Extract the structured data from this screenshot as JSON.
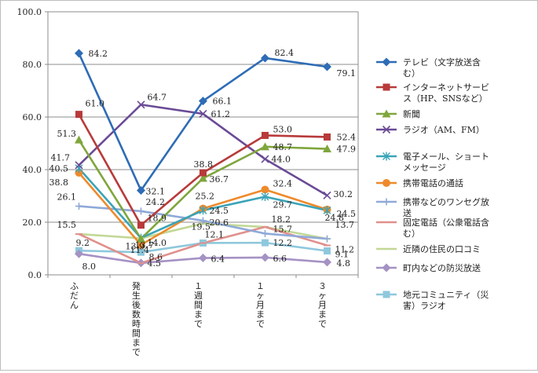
{
  "chart_data": {
    "type": "line",
    "categories": [
      [
        "ふ",
        "だ",
        "ん"
      ],
      [
        "発",
        "生",
        "後",
        "数",
        "時",
        "間",
        "ま",
        "で"
      ],
      [
        "１",
        "週",
        "間",
        "ま",
        "で"
      ],
      [
        "１",
        "ヶ",
        "月",
        "ま",
        "で"
      ],
      [
        "３",
        "ヶ",
        "月",
        "ま",
        "で"
      ]
    ],
    "ylim": [
      0,
      100
    ],
    "yticks": [
      "0.0",
      "20.0",
      "40.0",
      "60.0",
      "80.0",
      "100.0"
    ],
    "grid": true,
    "legend_position": "right",
    "series": [
      {
        "name": "テレビ（文字放送含む）",
        "legend_lines": [
          "テレビ（文字放送含",
          "む）"
        ],
        "color": "#2e6cb6",
        "marker": "diamond",
        "values": [
          84.2,
          32.1,
          66.1,
          82.4,
          79.1
        ]
      },
      {
        "name": "インターネットサービス（HP、SNSなど）",
        "legend_lines": [
          "インターネットサービ",
          "ス（HP、SNSなど）"
        ],
        "color": "#b83a3a",
        "marker": "square",
        "values": [
          61.0,
          18.9,
          38.8,
          53.0,
          52.4
        ]
      },
      {
        "name": "新聞",
        "legend_lines": [
          "新聞"
        ],
        "color": "#7fa63c",
        "marker": "triangle",
        "values": [
          51.3,
          13.7,
          36.7,
          48.7,
          47.9
        ]
      },
      {
        "name": "ラジオ（AM、FM）",
        "legend_lines": [
          "ラジオ（AM、FM）"
        ],
        "color": "#6a4a96",
        "marker": "x",
        "values": [
          41.7,
          64.7,
          61.2,
          44.0,
          30.2
        ]
      },
      {
        "name": "電子メール、ショートメッセージ",
        "legend_lines": [
          "電子メール、ショート",
          "メッセージ"
        ],
        "color": "#3aa4b8",
        "marker": "star",
        "values": [
          40.5,
          14.0,
          24.5,
          29.7,
          24.5
        ]
      },
      {
        "name": "携帯電話の通話",
        "legend_lines": [
          "携帯電話の通話"
        ],
        "color": "#ee8a2c",
        "marker": "circle",
        "values": [
          38.8,
          11.4,
          25.2,
          32.4,
          24.8
        ]
      },
      {
        "name": "携帯などのワンセグ放送",
        "legend_lines": [
          "携帯などのワンセグ放",
          "送"
        ],
        "color": "#8fa9d8",
        "marker": "plus",
        "values": [
          26.1,
          24.2,
          20.6,
          15.7,
          13.7
        ]
      },
      {
        "name": "固定電話（公衆電話含む）",
        "legend_lines": [
          "固定電話（公衆電話含",
          "む）"
        ],
        "color": "#e0908c",
        "marker": "dash",
        "values": [
          15.5,
          4.5,
          12.1,
          18.2,
          11.2
        ]
      },
      {
        "name": "近隣の住民の口コミ",
        "legend_lines": [
          "近隣の住民の口コミ"
        ],
        "color": "#c2d896",
        "marker": "dash",
        "values": [
          15.5,
          13.9,
          19.5,
          18.2,
          13.7
        ]
      },
      {
        "name": "町内などの防災放送",
        "legend_lines": [
          "町内などの防災放送"
        ],
        "color": "#a592c4",
        "marker": "diamond",
        "values": [
          8.0,
          4.5,
          6.4,
          6.6,
          4.8
        ]
      },
      {
        "name": "地元コミュニティ（災害）ラジオ",
        "legend_lines": [
          "地元コミュニティ（災",
          "害）ラジオ"
        ],
        "color": "#8ec8dc",
        "marker": "square",
        "values": [
          9.2,
          8.6,
          12.1,
          12.2,
          9.1
        ]
      }
    ],
    "data_labels": [
      {
        "text": "84.2",
        "series": 0,
        "point": 0
      },
      {
        "text": "32.1",
        "series": 0,
        "point": 1
      },
      {
        "text": "66.1",
        "series": 0,
        "point": 2
      },
      {
        "text": "82.4",
        "series": 0,
        "point": 3
      },
      {
        "text": "79.1",
        "series": 0,
        "point": 4
      },
      {
        "text": "61.0",
        "series": 1,
        "point": 0
      },
      {
        "text": "18.9",
        "series": 1,
        "point": 1
      },
      {
        "text": "38.8",
        "series": 1,
        "point": 2
      },
      {
        "text": "53.0",
        "series": 1,
        "point": 3
      },
      {
        "text": "52.4",
        "series": 1,
        "point": 4
      },
      {
        "text": "51.3",
        "series": 2,
        "point": 0
      },
      {
        "text": "13.7",
        "series": 2,
        "point": 1
      },
      {
        "text": "36.7",
        "series": 2,
        "point": 2
      },
      {
        "text": "48.7",
        "series": 2,
        "point": 3
      },
      {
        "text": "47.9",
        "series": 2,
        "point": 4
      },
      {
        "text": "41.7",
        "series": 3,
        "point": 0
      },
      {
        "text": "64.7",
        "series": 3,
        "point": 1
      },
      {
        "text": "61.2",
        "series": 3,
        "point": 2
      },
      {
        "text": "44.0",
        "series": 3,
        "point": 3
      },
      {
        "text": "30.2",
        "series": 3,
        "point": 4
      },
      {
        "text": "40.5",
        "series": 4,
        "point": 0
      },
      {
        "text": "14.0",
        "series": 4,
        "point": 1
      },
      {
        "text": "24.5",
        "series": 4,
        "point": 2
      },
      {
        "text": "29.7",
        "series": 4,
        "point": 3
      },
      {
        "text": "24.5",
        "series": 4,
        "point": 4
      },
      {
        "text": "38.8",
        "series": 5,
        "point": 0
      },
      {
        "text": "11.4",
        "series": 5,
        "point": 1
      },
      {
        "text": "25.2",
        "series": 5,
        "point": 2
      },
      {
        "text": "32.4",
        "series": 5,
        "point": 3
      },
      {
        "text": "24.8",
        "series": 5,
        "point": 4
      },
      {
        "text": "26.1",
        "series": 6,
        "point": 0
      },
      {
        "text": "24.2",
        "series": 6,
        "point": 1
      },
      {
        "text": "20.6",
        "series": 6,
        "point": 2
      },
      {
        "text": "15.7",
        "series": 6,
        "point": 3
      },
      {
        "text": "11.2",
        "series": 7,
        "point": 4
      },
      {
        "text": "15.5",
        "series": 7,
        "point": 0
      },
      {
        "text": "4.5",
        "series": 7,
        "point": 1
      },
      {
        "text": "12.1",
        "series": 10,
        "point": 2
      },
      {
        "text": "18.2",
        "series": 7,
        "point": 3
      },
      {
        "text": "13.7",
        "series": 8,
        "point": 4
      },
      {
        "text": "13.9",
        "series": 8,
        "point": 1
      },
      {
        "text": "19.5",
        "series": 8,
        "point": 2
      },
      {
        "text": "8.0",
        "series": 9,
        "point": 0
      },
      {
        "text": "6.4",
        "series": 9,
        "point": 2
      },
      {
        "text": "6.6",
        "series": 9,
        "point": 3
      },
      {
        "text": "4.8",
        "series": 9,
        "point": 4
      },
      {
        "text": "9.2",
        "series": 10,
        "point": 0
      },
      {
        "text": "8.6",
        "series": 10,
        "point": 1
      },
      {
        "text": "12.2",
        "series": 10,
        "point": 3
      },
      {
        "text": "9.1",
        "series": 10,
        "point": 4
      }
    ]
  }
}
